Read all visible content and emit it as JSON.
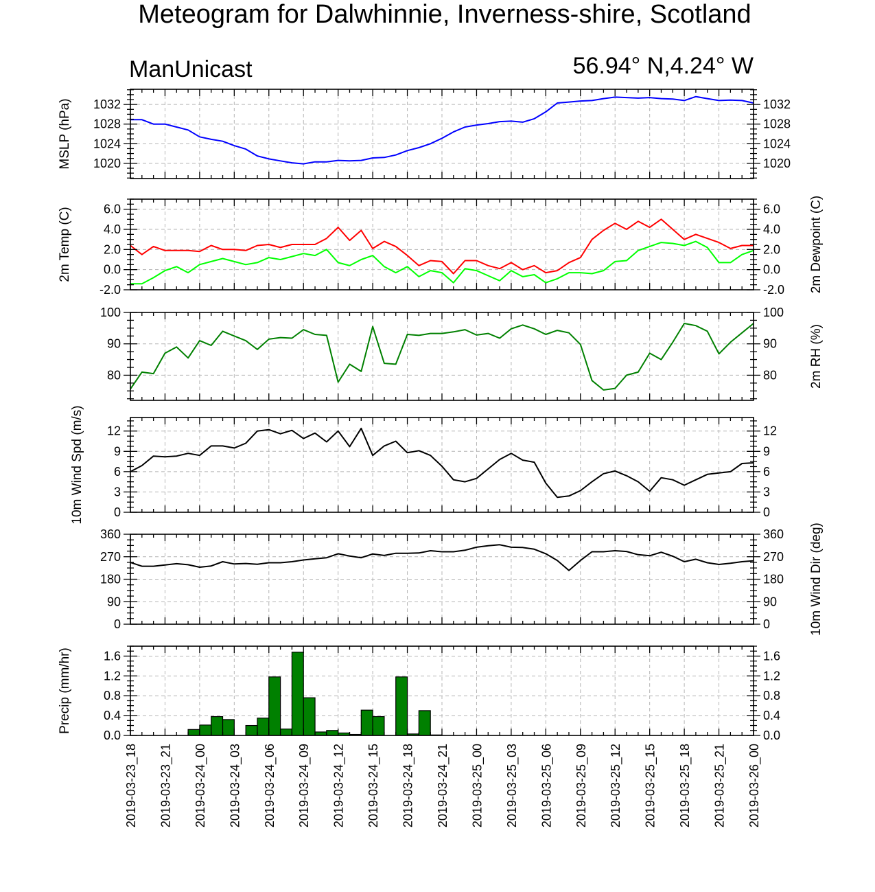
{
  "title": "Meteogram for Dalwhinnie, Inverness-shire, Scotland",
  "model": "ManUnicast",
  "location": "56.94° N,4.24° W",
  "chart_data": {
    "type": "line",
    "x_time_labels": [
      "2019-03-23_18",
      "2019-03-23_21",
      "2019-03-24_00",
      "2019-03-24_03",
      "2019-03-24_06",
      "2019-03-24_09",
      "2019-03-24_12",
      "2019-03-24_15",
      "2019-03-24_18",
      "2019-03-24_21",
      "2019-03-25_00",
      "2019-03-25_03",
      "2019-03-25_06",
      "2019-03-25_09",
      "2019-03-25_12",
      "2019-03-25_15",
      "2019-03-25_18",
      "2019-03-25_21",
      "2019-03-26_00"
    ],
    "x_range_hours": [
      0,
      54
    ],
    "panels": [
      {
        "id": "mslp",
        "ylabel_left": "MSLP (hPa)",
        "ylabel_right": "",
        "ylim": [
          1016.9,
          1035.1
        ],
        "yticks": [
          1020,
          1024,
          1028,
          1032
        ],
        "ytick_labels": [
          "1020",
          "1024",
          "1028",
          "1032"
        ],
        "grid": true,
        "series": [
          {
            "color": "#0000ff",
            "x": [
              0,
              1,
              2,
              3,
              4,
              5,
              6,
              7,
              8,
              9,
              10,
              11,
              12,
              13,
              14,
              15,
              16,
              17,
              18,
              19,
              20,
              21,
              22,
              23,
              24,
              25,
              26,
              27,
              28,
              29,
              30,
              31,
              32,
              33,
              34,
              35,
              36,
              37,
              38,
              39,
              40,
              41,
              42,
              43,
              44,
              45,
              46,
              47,
              48,
              49,
              50,
              51,
              52,
              53,
              54
            ],
            "y": [
              1028.9,
              1028.9,
              1028.0,
              1028.0,
              1027.4,
              1026.8,
              1025.4,
              1024.9,
              1024.5,
              1023.6,
              1022.9,
              1021.5,
              1020.9,
              1020.5,
              1020.1,
              1019.9,
              1020.3,
              1020.3,
              1020.6,
              1020.5,
              1020.6,
              1021.1,
              1021.2,
              1021.7,
              1022.6,
              1023.2,
              1024.0,
              1025.1,
              1026.4,
              1027.4,
              1027.8,
              1028.1,
              1028.5,
              1028.6,
              1028.4,
              1029.1,
              1030.5,
              1032.3,
              1032.5,
              1032.7,
              1032.8,
              1033.2,
              1033.5,
              1033.4,
              1033.3,
              1033.4,
              1033.2,
              1033.1,
              1032.8,
              1033.6,
              1033.2,
              1032.8,
              1032.9,
              1032.8,
              1032.3
            ]
          }
        ]
      },
      {
        "id": "temp",
        "ylabel_left": "2m Temp (C)",
        "ylabel_right": "2m Dewpoint (C)",
        "ylim": [
          -2.0,
          7.0
        ],
        "yticks": [
          -2,
          0,
          2,
          4,
          6
        ],
        "ytick_labels": [
          "-2.0",
          "0.0",
          "2.0",
          "4.0",
          "6.0"
        ],
        "grid": true,
        "series": [
          {
            "color": "#ff0000",
            "x": [
              0,
              1,
              2,
              3,
              4,
              5,
              6,
              7,
              8,
              9,
              10,
              11,
              12,
              13,
              14,
              15,
              16,
              17,
              18,
              19,
              20,
              21,
              22,
              23,
              24,
              25,
              26,
              27,
              28,
              29,
              30,
              31,
              32,
              33,
              34,
              35,
              36,
              37,
              38,
              39,
              40,
              41,
              42,
              43,
              44,
              45,
              46,
              47,
              48,
              49,
              50,
              51,
              52,
              53,
              54
            ],
            "y": [
              2.4,
              1.5,
              2.3,
              1.9,
              1.9,
              1.9,
              1.8,
              2.4,
              2.0,
              2.0,
              1.9,
              2.4,
              2.5,
              2.2,
              2.5,
              2.5,
              2.5,
              3.1,
              4.2,
              2.9,
              3.9,
              2.1,
              2.8,
              2.3,
              1.4,
              0.4,
              0.9,
              0.8,
              -0.4,
              0.9,
              0.9,
              0.4,
              0.1,
              0.7,
              0.0,
              0.4,
              -0.3,
              -0.1,
              0.7,
              1.2,
              3.0,
              3.9,
              4.6,
              4.0,
              4.8,
              4.2,
              5.0,
              4.0,
              3.0,
              3.5,
              3.1,
              2.7,
              2.1,
              2.4,
              2.4
            ]
          },
          {
            "color": "#00ff00",
            "x": [
              0,
              1,
              2,
              3,
              4,
              5,
              6,
              7,
              8,
              9,
              10,
              11,
              12,
              13,
              14,
              15,
              16,
              17,
              18,
              19,
              20,
              21,
              22,
              23,
              24,
              25,
              26,
              27,
              28,
              29,
              30,
              31,
              32,
              33,
              34,
              35,
              36,
              37,
              38,
              39,
              40,
              41,
              42,
              43,
              44,
              45,
              46,
              47,
              48,
              49,
              50,
              51,
              52,
              53,
              54
            ],
            "y": [
              -1.4,
              -1.4,
              -0.8,
              -0.1,
              0.3,
              -0.3,
              0.5,
              0.8,
              1.1,
              0.8,
              0.5,
              0.7,
              1.2,
              1.0,
              1.3,
              1.6,
              1.4,
              2.0,
              0.7,
              0.4,
              1.0,
              1.4,
              0.3,
              -0.3,
              0.3,
              -0.7,
              -0.1,
              -0.3,
              -1.3,
              0.1,
              -0.1,
              -0.6,
              -1.1,
              -0.1,
              -0.7,
              -0.5,
              -1.3,
              -0.9,
              -0.3,
              -0.3,
              -0.4,
              -0.1,
              0.8,
              0.9,
              1.9,
              2.3,
              2.7,
              2.6,
              2.4,
              2.8,
              2.2,
              0.7,
              0.7,
              1.5,
              1.9
            ]
          }
        ]
      },
      {
        "id": "rh",
        "ylabel_left": "",
        "ylabel_right": "2m RH (%)",
        "ylim": [
          72,
          100
        ],
        "yticks": [
          80,
          90,
          100
        ],
        "ytick_labels": [
          "80",
          "90",
          "100"
        ],
        "grid": true,
        "series": [
          {
            "color": "#008000",
            "x": [
              0,
              1,
              2,
              3,
              4,
              5,
              6,
              7,
              8,
              9,
              10,
              11,
              12,
              13,
              14,
              15,
              16,
              17,
              18,
              19,
              20,
              21,
              22,
              23,
              24,
              25,
              26,
              27,
              28,
              29,
              30,
              31,
              32,
              33,
              34,
              35,
              36,
              37,
              38,
              39,
              40,
              41,
              42,
              43,
              44,
              45,
              46,
              47,
              48,
              49,
              50,
              51,
              52,
              53,
              54
            ],
            "y": [
              75.6,
              81.0,
              80.5,
              87.0,
              89.0,
              85.5,
              91.0,
              89.5,
              94.0,
              92.5,
              91.0,
              88.2,
              91.5,
              92.0,
              91.8,
              94.5,
              93.0,
              92.7,
              77.8,
              83.5,
              81.2,
              95.5,
              83.8,
              83.5,
              93.0,
              92.7,
              93.3,
              93.3,
              93.8,
              94.5,
              92.8,
              93.3,
              91.8,
              94.8,
              96.0,
              94.8,
              93.0,
              94.3,
              93.5,
              89.8,
              78.3,
              75.3,
              75.8,
              80.0,
              81.0,
              87.0,
              85.0,
              90.5,
              96.5,
              95.8,
              94.0,
              86.8,
              90.5,
              93.5,
              96.5
            ]
          }
        ]
      },
      {
        "id": "wspd",
        "ylabel_left": "10m Wind Spd (m/s)",
        "ylabel_right": "",
        "ylim": [
          0,
          14
        ],
        "yticks": [
          0,
          3,
          6,
          9,
          12
        ],
        "ytick_labels": [
          "0",
          "3",
          "6",
          "9",
          "12"
        ],
        "grid": true,
        "series": [
          {
            "color": "#000000",
            "x": [
              0,
              1,
              2,
              3,
              4,
              5,
              6,
              7,
              8,
              9,
              10,
              11,
              12,
              13,
              14,
              15,
              16,
              17,
              18,
              19,
              20,
              21,
              22,
              23,
              24,
              25,
              26,
              27,
              28,
              29,
              30,
              31,
              32,
              33,
              34,
              35,
              36,
              37,
              38,
              39,
              40,
              41,
              42,
              43,
              44,
              45,
              46,
              47,
              48,
              49,
              50,
              51,
              52,
              53,
              54
            ],
            "y": [
              6.0,
              6.9,
              8.3,
              8.2,
              8.3,
              8.7,
              8.4,
              9.8,
              9.8,
              9.5,
              10.2,
              12.0,
              12.2,
              11.6,
              12.1,
              10.9,
              11.7,
              10.4,
              12.0,
              9.7,
              12.4,
              8.4,
              9.8,
              10.5,
              8.8,
              9.1,
              8.4,
              6.8,
              4.8,
              4.5,
              5.0,
              6.4,
              7.8,
              8.7,
              7.7,
              7.4,
              4.3,
              2.2,
              2.4,
              3.2,
              4.5,
              5.7,
              6.1,
              5.4,
              4.5,
              3.1,
              5.1,
              4.8,
              4.0,
              4.8,
              5.6,
              5.8,
              6.0,
              7.2,
              7.3
            ]
          }
        ]
      },
      {
        "id": "wdir",
        "ylabel_left": "",
        "ylabel_right": "10m Wind Dir (deg)",
        "ylim": [
          0,
          360
        ],
        "yticks": [
          0,
          90,
          180,
          270,
          360
        ],
        "ytick_labels": [
          "0",
          "90",
          "180",
          "270",
          "360"
        ],
        "grid": true,
        "series": [
          {
            "color": "#000000",
            "x": [
              0,
              1,
              2,
              3,
              4,
              5,
              6,
              7,
              8,
              9,
              10,
              11,
              12,
              13,
              14,
              15,
              16,
              17,
              18,
              19,
              20,
              21,
              22,
              23,
              24,
              25,
              26,
              27,
              28,
              29,
              30,
              31,
              32,
              33,
              34,
              35,
              36,
              37,
              38,
              39,
              40,
              41,
              42,
              43,
              44,
              45,
              46,
              47,
              48,
              49,
              50,
              51,
              52,
              53,
              54
            ],
            "y": [
              247,
              232,
              232,
              237,
              242,
              238,
              228,
              233,
              250,
              241,
              243,
              240,
              246,
              246,
              250,
              257,
              262,
              266,
              282,
              273,
              266,
              281,
              275,
              284,
              284,
              285,
              294,
              290,
              290,
              296,
              308,
              314,
              318,
              308,
              307,
              300,
              282,
              255,
              215,
              255,
              290,
              290,
              294,
              291,
              278,
              274,
              288,
              272,
              250,
              260,
              246,
              239,
              244,
              250,
              254
            ]
          }
        ]
      },
      {
        "id": "precip",
        "type": "bar",
        "ylabel_left": "Precip (mm/hr)",
        "ylabel_right": "",
        "ylim": [
          0,
          1.8
        ],
        "yticks": [
          0,
          0.4,
          0.8,
          1.2,
          1.6
        ],
        "ytick_labels": [
          "0.0",
          "0.4",
          "0.8",
          "1.2",
          "1.6"
        ],
        "grid": true,
        "bar_color": "#008000",
        "bars": [
          {
            "x": 5.5,
            "y": 0.12
          },
          {
            "x": 6.5,
            "y": 0.21
          },
          {
            "x": 7.5,
            "y": 0.38
          },
          {
            "x": 8.5,
            "y": 0.32
          },
          {
            "x": 10.5,
            "y": 0.2
          },
          {
            "x": 11.5,
            "y": 0.35
          },
          {
            "x": 12.5,
            "y": 1.18
          },
          {
            "x": 13.5,
            "y": 0.13
          },
          {
            "x": 14.5,
            "y": 1.68
          },
          {
            "x": 15.5,
            "y": 0.76
          },
          {
            "x": 16.5,
            "y": 0.07
          },
          {
            "x": 17.5,
            "y": 0.1
          },
          {
            "x": 18.5,
            "y": 0.05
          },
          {
            "x": 19.5,
            "y": 0.02
          },
          {
            "x": 20.5,
            "y": 0.51
          },
          {
            "x": 21.5,
            "y": 0.38
          },
          {
            "x": 23.5,
            "y": 1.18
          },
          {
            "x": 24.5,
            "y": 0.03
          },
          {
            "x": 25.5,
            "y": 0.5
          },
          {
            "x": 26.5,
            "y": 0.01
          }
        ]
      }
    ]
  }
}
